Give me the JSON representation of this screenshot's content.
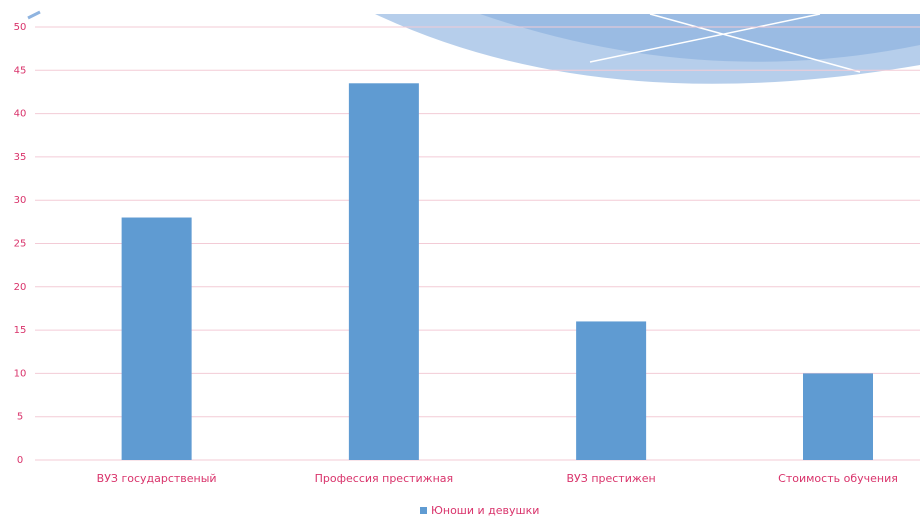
{
  "chart_data": {
    "type": "bar",
    "categories": [
      "ВУЗ государственый",
      "Профессия престижная",
      "ВУЗ престижен",
      "Стоимость обучения"
    ],
    "series": [
      {
        "name": "Юноши и девушки",
        "color": "#5f9bd2",
        "values": [
          28,
          43.5,
          16,
          10
        ]
      }
    ],
    "ylim": [
      0,
      50
    ],
    "yticks": [
      0,
      5,
      10,
      15,
      20,
      25,
      30,
      35,
      40,
      45,
      50
    ],
    "grid": true,
    "legend": "bottom"
  }
}
